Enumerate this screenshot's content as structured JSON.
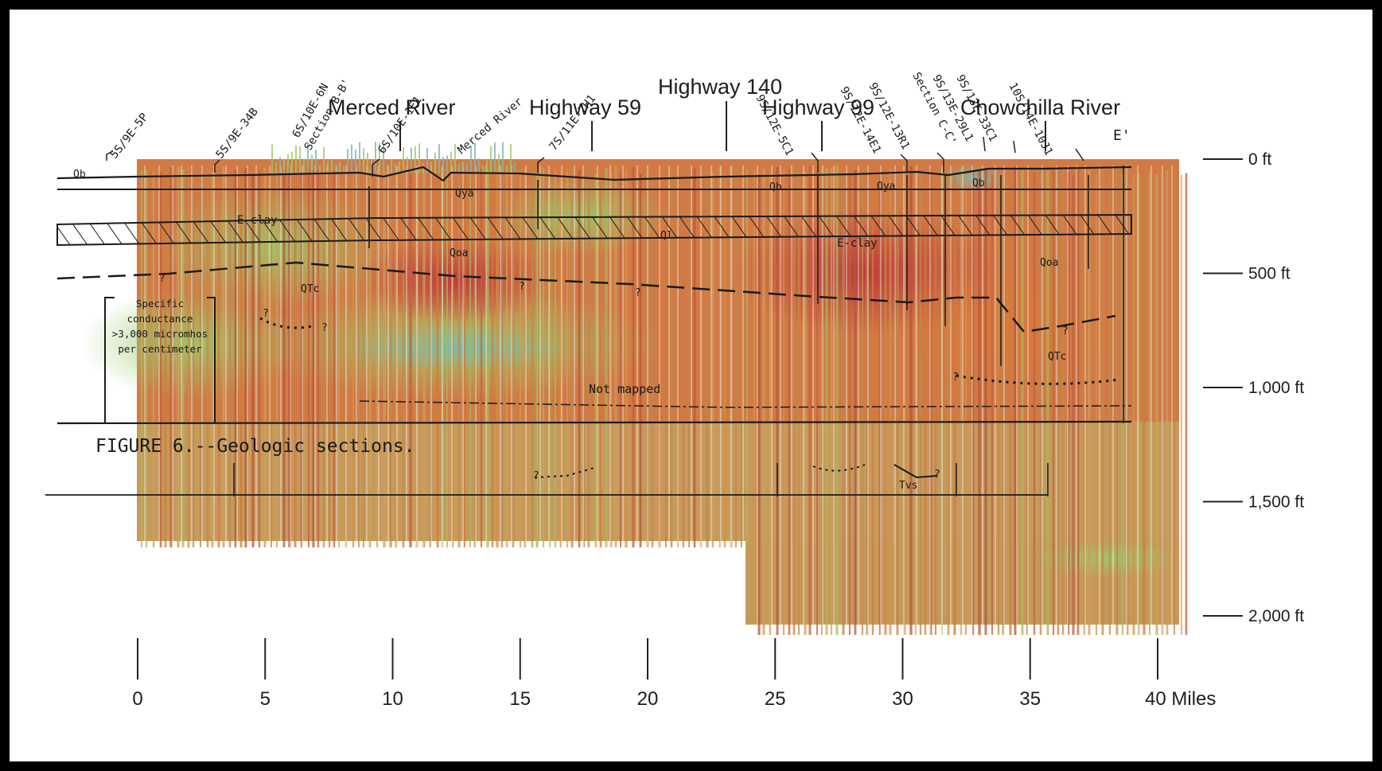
{
  "landmarks": [
    {
      "key": "merced_river_top",
      "text": "Merced River"
    },
    {
      "key": "highway_59",
      "text": "Highway 59"
    },
    {
      "key": "highway_140",
      "text": "Highway 140"
    },
    {
      "key": "highway_99",
      "text": "Highway 99"
    },
    {
      "key": "chowchilla_river",
      "text": "Chowchilla River"
    }
  ],
  "wells": [
    "5S/9E-5P",
    "5S/9E-34B",
    "6S/10E-6N",
    "6S/10E-1E1",
    "7S/11E-7H1",
    "9S/12E-5C1",
    "9S/12E-14E1",
    "9S/12E-13R1",
    "9S/13E-29L1",
    "9S/13E-33C1",
    "10S/14E-10J1"
  ],
  "section_labels": {
    "section_b": "Section B-B'",
    "section_c": "Section C-C'",
    "end": "E'",
    "merced_river_sketch": "Merced River"
  },
  "units": {
    "qb_left": "Qb",
    "qb_mid": "Qb",
    "qb_right": "Qb",
    "qya_left": "Qya",
    "qya_right": "Qya",
    "eclay_left": "E-clay",
    "eclay_right": "E-clay",
    "ql": "Ql",
    "qoa_left": "Qoa",
    "qoa_right": "Qoa",
    "qtc_left": "QTc",
    "qtc_right": "QTc",
    "tvs": "Tvs",
    "not_mapped": "Not mapped"
  },
  "annotation": {
    "lines": [
      "Specific",
      "conductance",
      ">3,000 micromhos",
      "per centimeter"
    ]
  },
  "figure_caption": "FIGURE 6.--Geologic sections.",
  "depth_axis": [
    {
      "value": 0,
      "label": "0 ft"
    },
    {
      "value": 500,
      "label": "500 ft"
    },
    {
      "value": 1000,
      "label": "1,000 ft"
    },
    {
      "value": 1500,
      "label": "1,500 ft"
    },
    {
      "value": 2000,
      "label": "2,000 ft"
    }
  ],
  "distance_axis": [
    {
      "value": 0,
      "label": "0"
    },
    {
      "value": 5,
      "label": "5"
    },
    {
      "value": 10,
      "label": "10"
    },
    {
      "value": 15,
      "label": "15"
    },
    {
      "value": 20,
      "label": "20"
    },
    {
      "value": 25,
      "label": "25"
    },
    {
      "value": 30,
      "label": "30"
    },
    {
      "value": 35,
      "label": "35"
    },
    {
      "value": 40,
      "label": "40 Miles"
    }
  ],
  "colors": {
    "frame": "#000000",
    "conductive_red": "#c8553d",
    "moderate_orange": "#d9833e",
    "tan": "#c8a064",
    "resistive_green": "#a8c860",
    "fresh_blue": "#7ab8b0"
  }
}
